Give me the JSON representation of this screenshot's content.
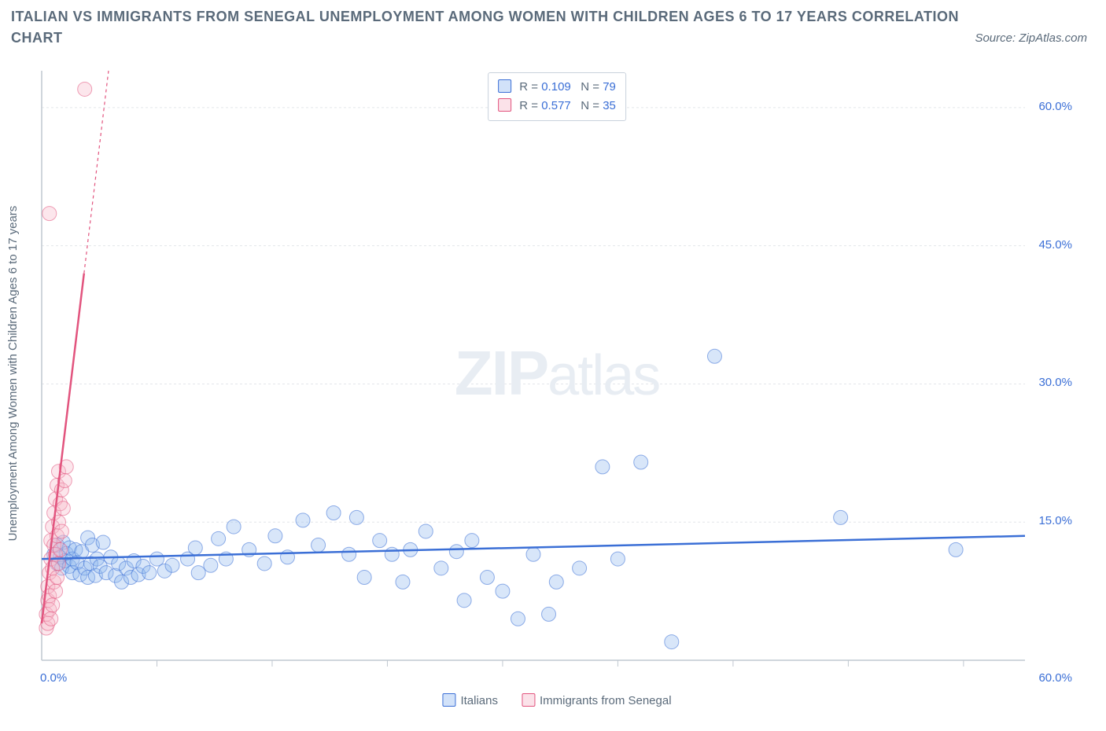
{
  "title": "ITALIAN VS IMMIGRANTS FROM SENEGAL UNEMPLOYMENT AMONG WOMEN WITH CHILDREN AGES 6 TO 17 YEARS CORRELATION CHART",
  "source": "Source: ZipAtlas.com",
  "watermark": {
    "bold": "ZIP",
    "light": "atlas"
  },
  "y_axis_label": "Unemployment Among Women with Children Ages 6 to 17 years",
  "chart": {
    "type": "scatter",
    "background_color": "#ffffff",
    "grid_color": "#e3e6ea",
    "axis_color": "#c0c8d0",
    "xlim": [
      0,
      64
    ],
    "ylim": [
      0,
      64
    ],
    "y_ticks": [
      {
        "value": 15,
        "label": "15.0%"
      },
      {
        "value": 30,
        "label": "30.0%"
      },
      {
        "value": 45,
        "label": "45.0%"
      },
      {
        "value": 60,
        "label": "60.0%"
      }
    ],
    "x_zero_label": "0.0%",
    "x_end_label": "60.0%",
    "x_tick_values": [
      7.5,
      15,
      22.5,
      30,
      37.5,
      45,
      52.5,
      60
    ],
    "marker_radius": 9,
    "marker_opacity": 0.35,
    "trend_line_width": 2.5,
    "series": [
      {
        "name": "Italians",
        "color_fill": "#8fb6ef",
        "color_stroke": "#3b6fd6",
        "R": "0.109",
        "N": "79",
        "trend": {
          "x1": 0,
          "y1": 11,
          "x2": 64,
          "y2": 13.5,
          "dashed": false
        },
        "points": [
          [
            0.8,
            11.5
          ],
          [
            1.0,
            12.5
          ],
          [
            1.0,
            10.5
          ],
          [
            1.2,
            11.2
          ],
          [
            1.3,
            10.0
          ],
          [
            1.4,
            12.8
          ],
          [
            1.5,
            10.8
          ],
          [
            1.6,
            11.6
          ],
          [
            1.8,
            10.2
          ],
          [
            1.8,
            12.2
          ],
          [
            2.0,
            11.0
          ],
          [
            2.0,
            9.5
          ],
          [
            2.2,
            12.0
          ],
          [
            2.3,
            10.6
          ],
          [
            2.5,
            9.3
          ],
          [
            2.6,
            11.8
          ],
          [
            2.8,
            10.0
          ],
          [
            3.0,
            13.3
          ],
          [
            3.0,
            9.0
          ],
          [
            3.2,
            10.5
          ],
          [
            3.3,
            12.5
          ],
          [
            3.5,
            9.2
          ],
          [
            3.6,
            11.0
          ],
          [
            3.8,
            10.2
          ],
          [
            4.0,
            12.8
          ],
          [
            4.2,
            9.5
          ],
          [
            4.5,
            11.2
          ],
          [
            4.8,
            9.2
          ],
          [
            5.0,
            10.5
          ],
          [
            5.2,
            8.5
          ],
          [
            5.5,
            10.0
          ],
          [
            5.8,
            9.0
          ],
          [
            6.0,
            10.8
          ],
          [
            6.3,
            9.3
          ],
          [
            6.6,
            10.2
          ],
          [
            7.0,
            9.5
          ],
          [
            7.5,
            11.0
          ],
          [
            8.0,
            9.7
          ],
          [
            8.5,
            10.3
          ],
          [
            9.5,
            11.0
          ],
          [
            10.0,
            12.2
          ],
          [
            10.2,
            9.5
          ],
          [
            11.0,
            10.3
          ],
          [
            11.5,
            13.2
          ],
          [
            12.0,
            11.0
          ],
          [
            12.5,
            14.5
          ],
          [
            13.5,
            12.0
          ],
          [
            14.5,
            10.5
          ],
          [
            15.2,
            13.5
          ],
          [
            16.0,
            11.2
          ],
          [
            17.0,
            15.2
          ],
          [
            18.0,
            12.5
          ],
          [
            19.0,
            16.0
          ],
          [
            20.0,
            11.5
          ],
          [
            20.5,
            15.5
          ],
          [
            21.0,
            9.0
          ],
          [
            22.0,
            13.0
          ],
          [
            22.8,
            11.5
          ],
          [
            23.5,
            8.5
          ],
          [
            24.0,
            12.0
          ],
          [
            25.0,
            14.0
          ],
          [
            26.0,
            10.0
          ],
          [
            27.0,
            11.8
          ],
          [
            27.5,
            6.5
          ],
          [
            28.0,
            13.0
          ],
          [
            29.0,
            9.0
          ],
          [
            30.0,
            7.5
          ],
          [
            31.0,
            4.5
          ],
          [
            32.0,
            11.5
          ],
          [
            33.0,
            5.0
          ],
          [
            33.5,
            8.5
          ],
          [
            35.0,
            10.0
          ],
          [
            36.5,
            21.0
          ],
          [
            37.5,
            11.0
          ],
          [
            39.0,
            21.5
          ],
          [
            41.0,
            2.0
          ],
          [
            43.8,
            33.0
          ],
          [
            52.0,
            15.5
          ],
          [
            59.5,
            12.0
          ]
        ]
      },
      {
        "name": "Immigrants from Senegal",
        "color_fill": "#f5b6c9",
        "color_stroke": "#e2547e",
        "R": "0.577",
        "N": "35",
        "trend": {
          "x1": 0,
          "y1": 4,
          "x2": 4.35,
          "y2": 64,
          "dashed_above": 42
        },
        "points": [
          [
            0.3,
            3.5
          ],
          [
            0.3,
            5.0
          ],
          [
            0.4,
            6.5
          ],
          [
            0.4,
            4.0
          ],
          [
            0.4,
            8.0
          ],
          [
            0.5,
            5.5
          ],
          [
            0.5,
            9.5
          ],
          [
            0.5,
            7.0
          ],
          [
            0.6,
            4.5
          ],
          [
            0.6,
            11.0
          ],
          [
            0.6,
            13.0
          ],
          [
            0.7,
            6.0
          ],
          [
            0.7,
            10.0
          ],
          [
            0.7,
            14.5
          ],
          [
            0.8,
            8.5
          ],
          [
            0.8,
            12.5
          ],
          [
            0.8,
            16.0
          ],
          [
            0.9,
            7.5
          ],
          [
            0.9,
            11.5
          ],
          [
            0.9,
            17.5
          ],
          [
            1.0,
            9.0
          ],
          [
            1.0,
            13.5
          ],
          [
            1.0,
            19.0
          ],
          [
            1.1,
            10.5
          ],
          [
            1.1,
            15.0
          ],
          [
            1.1,
            20.5
          ],
          [
            1.2,
            12.0
          ],
          [
            1.2,
            17.0
          ],
          [
            1.3,
            14.0
          ],
          [
            1.3,
            18.5
          ],
          [
            1.4,
            16.5
          ],
          [
            1.5,
            19.5
          ],
          [
            0.5,
            48.5
          ],
          [
            2.8,
            62.0
          ],
          [
            1.6,
            21.0
          ]
        ]
      }
    ]
  },
  "legend_bottom": [
    {
      "label": "Italians",
      "series": 0
    },
    {
      "label": "Immigrants from Senegal",
      "series": 1
    }
  ]
}
